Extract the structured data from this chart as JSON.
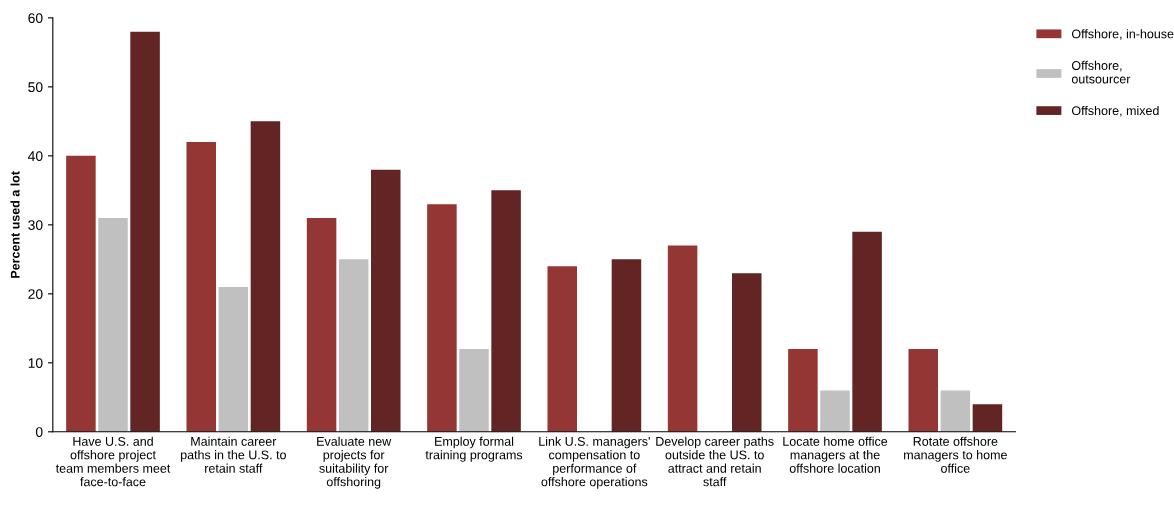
{
  "chart_data": {
    "type": "bar",
    "ylabel": "Percent used a lot",
    "categories": [
      "Have U.S. and\noffshore project\nteam members meet\nface-to-face",
      "Maintain career\npaths in the U.S. to\nretain staff",
      "Evaluate new\nprojects for\nsuitability for\noffshoring",
      "Employ formal\ntraining programs",
      "Link U.S. managers'\ncompensation to\nperformance of\noffshore operations",
      "Develop career paths\noutside the US. to\nattract and retain\nstaff",
      "Locate home office\nmanagers at the\noffshore location",
      "Rotate offshore\nmanagers to home\noffice"
    ],
    "series": [
      {
        "name": "Offshore, in-house",
        "color": "#943634",
        "values": [
          40,
          42,
          31,
          33,
          24,
          27,
          12,
          12
        ]
      },
      {
        "name": "Offshore,\noutsourcer",
        "color": "#c0c0c0",
        "values": [
          31,
          21,
          25,
          12,
          0,
          0,
          6,
          6
        ]
      },
      {
        "name": "Offshore, mixed",
        "color": "#632523",
        "values": [
          58,
          45,
          38,
          35,
          25,
          23,
          29,
          4
        ]
      }
    ],
    "ylim": [
      0,
      60
    ],
    "yticks": [
      0,
      10,
      20,
      30,
      40,
      50,
      60
    ],
    "grid": false,
    "legend": "top right"
  }
}
